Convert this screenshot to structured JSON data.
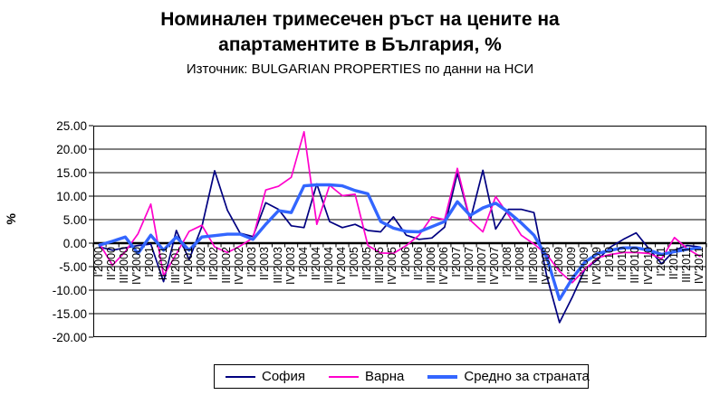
{
  "header": {
    "title_lines": [
      "Номинален тримесечен ръст на цените на",
      "апартаментите в България, %"
    ],
    "subtitle": "Източник: BULGARIAN PROPERTIES по данни на НСИ"
  },
  "chart_data": {
    "type": "line",
    "title": "Номинален тримесечен ръст на цените на апартаментите в България, %",
    "subtitle": "Източник: BULGARIAN PROPERTIES по данни на НСИ",
    "xlabel": "",
    "ylabel": "%",
    "ylim": [
      -20,
      25
    ],
    "ytick_step": 5,
    "ytick_decimals": 2,
    "grid": true,
    "legend_position": "bottom",
    "axis_color": "#000000",
    "categories": [
      "I'2000",
      "II'2000",
      "III'2000",
      "IV'2000",
      "I'2001",
      "II'2001",
      "III'2001",
      "IV'2001",
      "I'2002",
      "II'2002",
      "III'2002",
      "IV'2002",
      "I'2003",
      "II'2003",
      "III'2003",
      "IV'2003",
      "I'2004",
      "II'2004",
      "III'2004",
      "IV'2004",
      "I'2005",
      "II'2005",
      "III'2005",
      "IV'2005",
      "I'2006",
      "II'2006",
      "III'2006",
      "IV'2006",
      "I'2007",
      "II'2007",
      "III'2007",
      "IV'2007",
      "I'2008",
      "II'2008",
      "III'2008",
      "IV'2008",
      "I'2009",
      "II'2009",
      "III'2009",
      "IV'2009",
      "I'2010",
      "II'2010",
      "III'2010",
      "IV'2010",
      "I'2011",
      "II'2011",
      "III'2011",
      "IV'2011"
    ],
    "series": [
      {
        "name": "София",
        "slug": "sofia",
        "color": "#000080",
        "stroke_width": 1.7,
        "values": [
          -0.8,
          -1.5,
          -1.0,
          -0.5,
          -0.2,
          -8.2,
          2.7,
          -3.5,
          3.5,
          15.4,
          7.0,
          2.1,
          1.4,
          8.6,
          7.2,
          3.7,
          3.3,
          12.6,
          4.6,
          3.3,
          4.0,
          2.7,
          2.4,
          5.6,
          1.7,
          0.8,
          1.1,
          3.4,
          14.9,
          4.8,
          15.5,
          3.0,
          7.2,
          7.2,
          6.5,
          -7.0,
          -16.9,
          -11.5,
          -5.5,
          -3.5,
          -0.8,
          0.8,
          2.2,
          -1.2,
          -4.4,
          -1.5,
          -0.5,
          -0.8
        ]
      },
      {
        "name": "Варна",
        "slug": "varna",
        "color": "#FF00CC",
        "stroke_width": 1.7,
        "values": [
          -0.2,
          -4.7,
          -1.8,
          2.0,
          8.3,
          -6.9,
          -2.3,
          2.5,
          3.8,
          -0.8,
          -2.0,
          -0.6,
          1.1,
          11.3,
          12.1,
          14.0,
          23.7,
          4.0,
          12.3,
          10.1,
          10.4,
          -0.5,
          -2.1,
          -2.2,
          -0.5,
          1.7,
          5.6,
          5.0,
          15.9,
          4.9,
          2.4,
          9.9,
          6.0,
          1.7,
          -0.2,
          -2.4,
          -6.0,
          -8.4,
          -5.5,
          -3.1,
          -2.4,
          -2.0,
          -2.0,
          -2.2,
          -3.3,
          1.2,
          -1.2,
          -2.8
        ]
      },
      {
        "name": "Средно за страната",
        "slug": "country-average",
        "color": "#3366FF",
        "stroke_width": 3.4,
        "values": [
          -0.4,
          0.4,
          1.3,
          -2.2,
          1.7,
          -1.5,
          1.3,
          -1.5,
          1.3,
          1.6,
          1.9,
          1.9,
          0.8,
          4.0,
          6.9,
          6.5,
          12.2,
          12.4,
          12.4,
          12.2,
          11.2,
          10.5,
          4.6,
          3.2,
          2.5,
          2.4,
          3.5,
          4.6,
          8.8,
          5.9,
          7.5,
          8.5,
          6.6,
          4.3,
          1.7,
          -3.0,
          -12.0,
          -7.5,
          -4.0,
          -2.2,
          -1.5,
          -1.0,
          -1.0,
          -1.5,
          -2.4,
          -1.8,
          -1.3,
          -1.0
        ]
      }
    ]
  }
}
